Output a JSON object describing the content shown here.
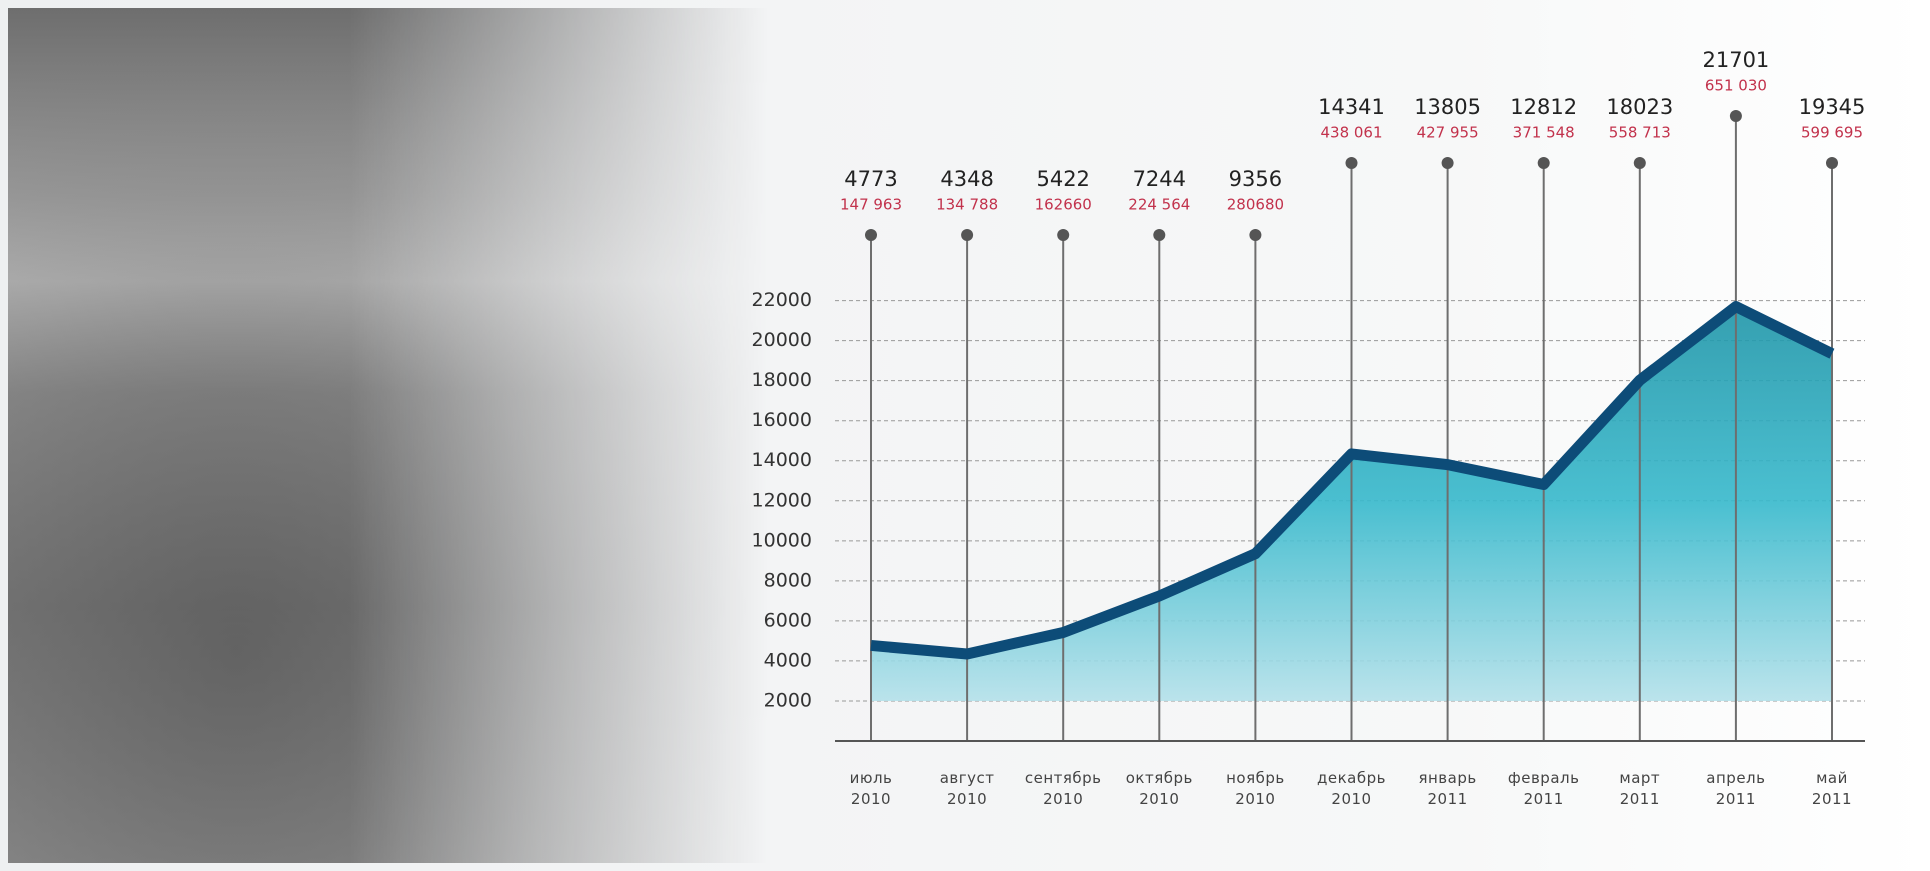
{
  "chart_data": {
    "type": "area",
    "categories": [
      "июль\n2010",
      "август\n2010",
      "сентябрь\n2010",
      "октябрь\n2010",
      "ноябрь\n2010",
      "декабрь\n2010",
      "январь\n2011",
      "февраль\n2011",
      "март\n2011",
      "апрель\n2011",
      "май\n2011"
    ],
    "values": [
      4773,
      4348,
      5422,
      7244,
      9356,
      14341,
      13805,
      12812,
      18023,
      21701,
      19345
    ],
    "sublabels": [
      "147 963",
      "134 788",
      "162660",
      "224 564",
      "280680",
      "438 061",
      "427 955",
      "371 548",
      "558 713",
      "651 030",
      "599 695"
    ],
    "color": "#0d4c78",
    "ylim": [
      0,
      22000
    ],
    "yticks": [
      2000,
      4000,
      6000,
      8000,
      10000,
      12000,
      14000,
      16000,
      18000,
      20000,
      22000
    ],
    "grid": true
  }
}
